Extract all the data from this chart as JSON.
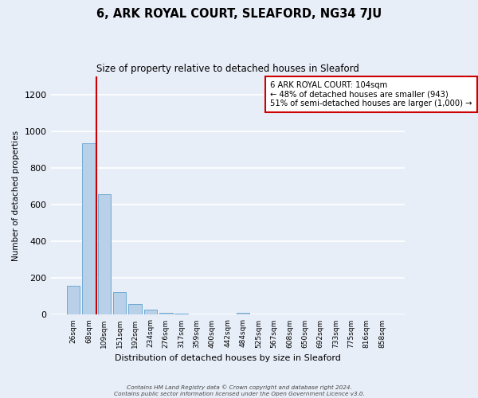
{
  "title": "6, ARK ROYAL COURT, SLEAFORD, NG34 7JU",
  "subtitle": "Size of property relative to detached houses in Sleaford",
  "xlabel": "Distribution of detached houses by size in Sleaford",
  "ylabel": "Number of detached properties",
  "bar_labels": [
    "26sqm",
    "68sqm",
    "109sqm",
    "151sqm",
    "192sqm",
    "234sqm",
    "276sqm",
    "317sqm",
    "359sqm",
    "400sqm",
    "442sqm",
    "484sqm",
    "525sqm",
    "567sqm",
    "608sqm",
    "650sqm",
    "692sqm",
    "733sqm",
    "775sqm",
    "816sqm",
    "858sqm"
  ],
  "bar_values": [
    160,
    935,
    655,
    125,
    60,
    30,
    12,
    5,
    0,
    0,
    0,
    10,
    0,
    0,
    0,
    0,
    0,
    0,
    0,
    0,
    0
  ],
  "bar_color": "#b8d0e8",
  "bar_edge_color": "#6faad4",
  "marker_label_title": "6 ARK ROYAL COURT: 104sqm",
  "marker_label_line1": "← 48% of detached houses are smaller (943)",
  "marker_label_line2": "51% of semi-detached houses are larger (1,000) →",
  "vline_color": "#cc0000",
  "vline_x": 1.5,
  "ylim": [
    0,
    1300
  ],
  "yticks": [
    0,
    200,
    400,
    600,
    800,
    1000,
    1200
  ],
  "footer_line1": "Contains HM Land Registry data © Crown copyright and database right 2024.",
  "footer_line2": "Contains public sector information licensed under the Open Government Licence v3.0.",
  "bg_color": "#e8eef8",
  "grid_color": "#ffffff"
}
